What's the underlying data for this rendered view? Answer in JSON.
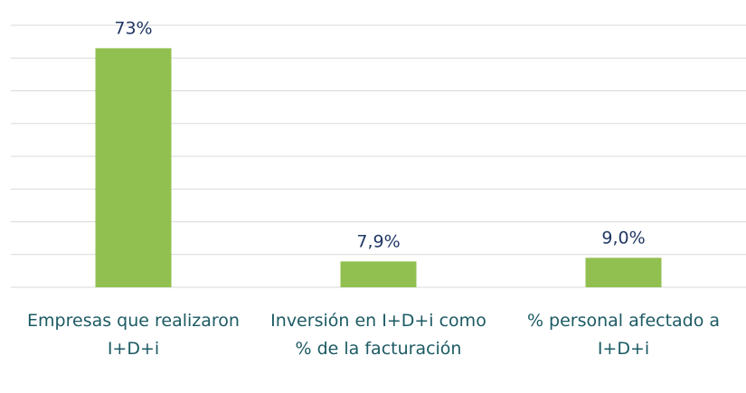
{
  "chart_data": {
    "type": "bar",
    "categories": [
      "Empresas que realizaron I+D+i",
      "Inversión en I+D+i como % de la facturación",
      "% personal afectado a I+D+i"
    ],
    "values": [
      73,
      7.9,
      9.0
    ],
    "value_labels": [
      "73%",
      "7,9%",
      "9,0%"
    ],
    "color": "#92c050",
    "ylim": [
      0,
      80
    ],
    "yticks": [
      0,
      10,
      20,
      30,
      40,
      50,
      60,
      70,
      80
    ],
    "grid": true
  }
}
